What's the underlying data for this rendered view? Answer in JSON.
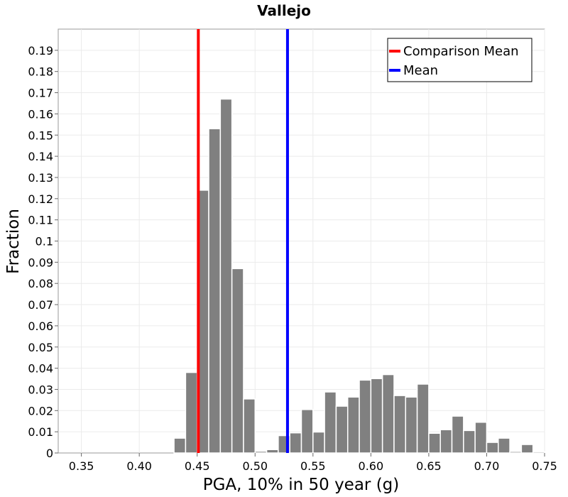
{
  "chart_data": {
    "type": "bar",
    "title": "Vallejo",
    "xlabel": "PGA, 10% in 50 year (g)",
    "ylabel": "Fraction",
    "xlim": [
      0.33,
      0.75
    ],
    "ylim": [
      0,
      0.2
    ],
    "bin_width": 0.01,
    "x_ticks": [
      "0.35",
      "0.40",
      "0.45",
      "0.50",
      "0.55",
      "0.60",
      "0.65",
      "0.70",
      "0.75"
    ],
    "y_ticks": [
      "0",
      "0.01",
      "0.02",
      "0.03",
      "0.04",
      "0.05",
      "0.06",
      "0.07",
      "0.08",
      "0.09",
      "0.1",
      "0.11",
      "0.12",
      "0.13",
      "0.14",
      "0.15",
      "0.16",
      "0.17",
      "0.18",
      "0.19"
    ],
    "bins": [
      {
        "x": 0.435,
        "value": 0.007
      },
      {
        "x": 0.445,
        "value": 0.038
      },
      {
        "x": 0.455,
        "value": 0.124
      },
      {
        "x": 0.465,
        "value": 0.153
      },
      {
        "x": 0.475,
        "value": 0.167
      },
      {
        "x": 0.485,
        "value": 0.087
      },
      {
        "x": 0.495,
        "value": 0.0255
      },
      {
        "x": 0.505,
        "value": 0.0008
      },
      {
        "x": 0.515,
        "value": 0.0016
      },
      {
        "x": 0.525,
        "value": 0.0082
      },
      {
        "x": 0.535,
        "value": 0.0095
      },
      {
        "x": 0.545,
        "value": 0.0205
      },
      {
        "x": 0.555,
        "value": 0.0099
      },
      {
        "x": 0.565,
        "value": 0.0288
      },
      {
        "x": 0.575,
        "value": 0.0221
      },
      {
        "x": 0.585,
        "value": 0.0264
      },
      {
        "x": 0.595,
        "value": 0.0344
      },
      {
        "x": 0.605,
        "value": 0.0351
      },
      {
        "x": 0.615,
        "value": 0.037
      },
      {
        "x": 0.625,
        "value": 0.0271
      },
      {
        "x": 0.635,
        "value": 0.0264
      },
      {
        "x": 0.645,
        "value": 0.0325
      },
      {
        "x": 0.655,
        "value": 0.0093
      },
      {
        "x": 0.665,
        "value": 0.011
      },
      {
        "x": 0.675,
        "value": 0.0174
      },
      {
        "x": 0.685,
        "value": 0.0106
      },
      {
        "x": 0.695,
        "value": 0.0145
      },
      {
        "x": 0.705,
        "value": 0.005
      },
      {
        "x": 0.715,
        "value": 0.007
      },
      {
        "x": 0.725,
        "value": 0.0007
      },
      {
        "x": 0.735,
        "value": 0.004
      },
      {
        "x": 0.745,
        "value": 0.0006
      }
    ],
    "reference_lines": [
      {
        "name": "Comparison Mean",
        "x": 0.451,
        "color": "#ff0000"
      },
      {
        "name": "Mean",
        "x": 0.528,
        "color": "#0000ff"
      }
    ],
    "bar_color": "#808080",
    "grid": true,
    "legend_position": "top-right"
  }
}
